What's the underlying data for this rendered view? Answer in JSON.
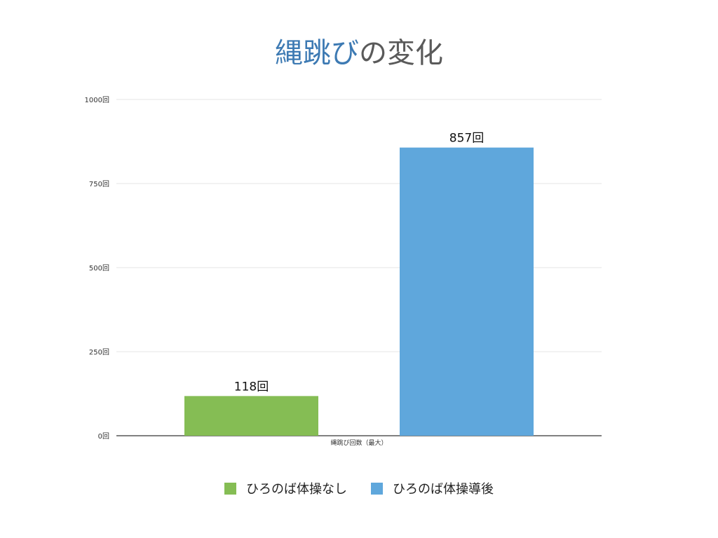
{
  "title": {
    "part_a": "縄跳び",
    "part_b": "の変化"
  },
  "colors": {
    "title_accent": "#3d7ab3",
    "title_rest": "#5a5a5a",
    "grid": "#e6e6e6",
    "axis": "#000000"
  },
  "chart_data": {
    "type": "bar",
    "title": "縄跳びの変化",
    "categories": [
      "縄跳び回数（最大）"
    ],
    "xlabel": "",
    "ylabel": "",
    "ylim": [
      0,
      1000
    ],
    "yticks": [
      0,
      250,
      500,
      750,
      1000
    ],
    "ytick_labels": [
      "0回",
      "250回",
      "500回",
      "750回",
      "1000回"
    ],
    "grid": true,
    "legend_position": "bottom",
    "series": [
      {
        "name": "ひろのば体操なし",
        "values": [
          118
        ],
        "label": "118回",
        "color": "#85bd54"
      },
      {
        "name": "ひろのば体操導後",
        "values": [
          857
        ],
        "label": "857回",
        "color": "#5fa7dc"
      }
    ]
  }
}
